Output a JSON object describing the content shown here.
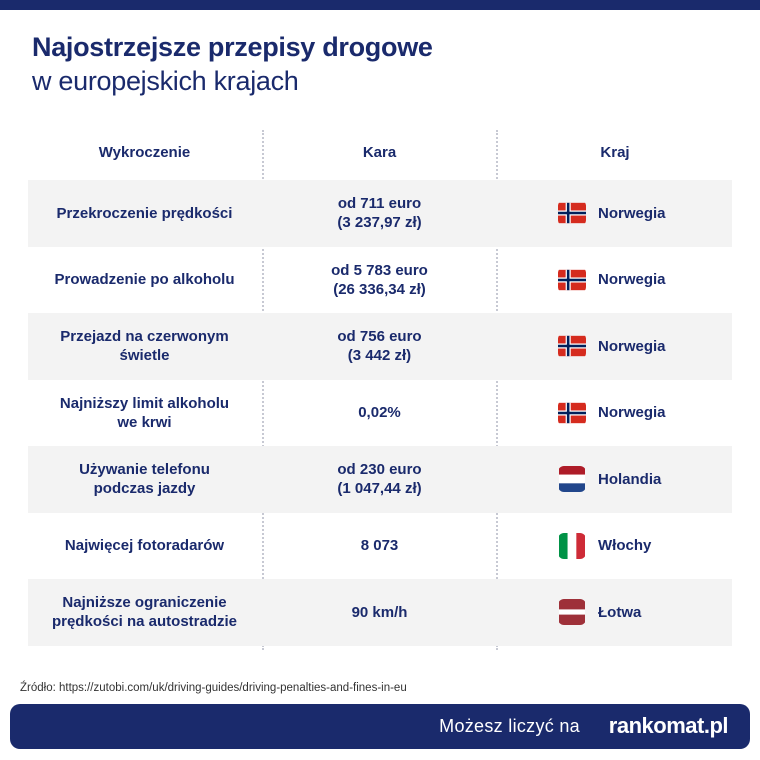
{
  "title": {
    "line1": "Najostrzejsze przepisy drogowe",
    "line2": "w europejskich krajach"
  },
  "table": {
    "headers": [
      "Wykroczenie",
      "Kara",
      "Kraj"
    ],
    "rows": [
      {
        "offense": "Przekroczenie prędkości",
        "penalty": "od 711 euro\n(3 237,97 zł)",
        "country": "Norwegia",
        "flag": "norway-flag-icon"
      },
      {
        "offense": "Prowadzenie po alkoholu",
        "penalty": "od 5 783 euro\n(26 336,34 zł)",
        "country": "Norwegia",
        "flag": "norway-flag-icon"
      },
      {
        "offense": "Przejazd na czerwonym\nświetle",
        "penalty": "od 756 euro\n(3 442 zł)",
        "country": "Norwegia",
        "flag": "norway-flag-icon"
      },
      {
        "offense": "Najniższy limit alkoholu\nwe krwi",
        "penalty": "0,02%",
        "country": "Norwegia",
        "flag": "norway-flag-icon"
      },
      {
        "offense": "Używanie telefonu\npodczas jazdy",
        "penalty": "od 230 euro\n(1 047,44 zł)",
        "country": "Holandia",
        "flag": "netherlands-flag-icon"
      },
      {
        "offense": "Najwięcej fotoradarów",
        "penalty": "8 073",
        "country": "Włochy",
        "flag": "italy-flag-icon"
      },
      {
        "offense": "Najniższe ograniczenie\nprędkości na autostradzie",
        "penalty": "90 km/h",
        "country": "Łotwa",
        "flag": "latvia-flag-icon"
      }
    ]
  },
  "source": "Źródło: https://zutobi.com/uk/driving-guides/driving-penalties-and-fines-in-eu",
  "footer": {
    "slogan": "Możesz liczyć na",
    "logo": "rankomat.pl"
  },
  "colors": {
    "navy": "#1a2a6c",
    "row_shade": "#f3f3f3"
  }
}
